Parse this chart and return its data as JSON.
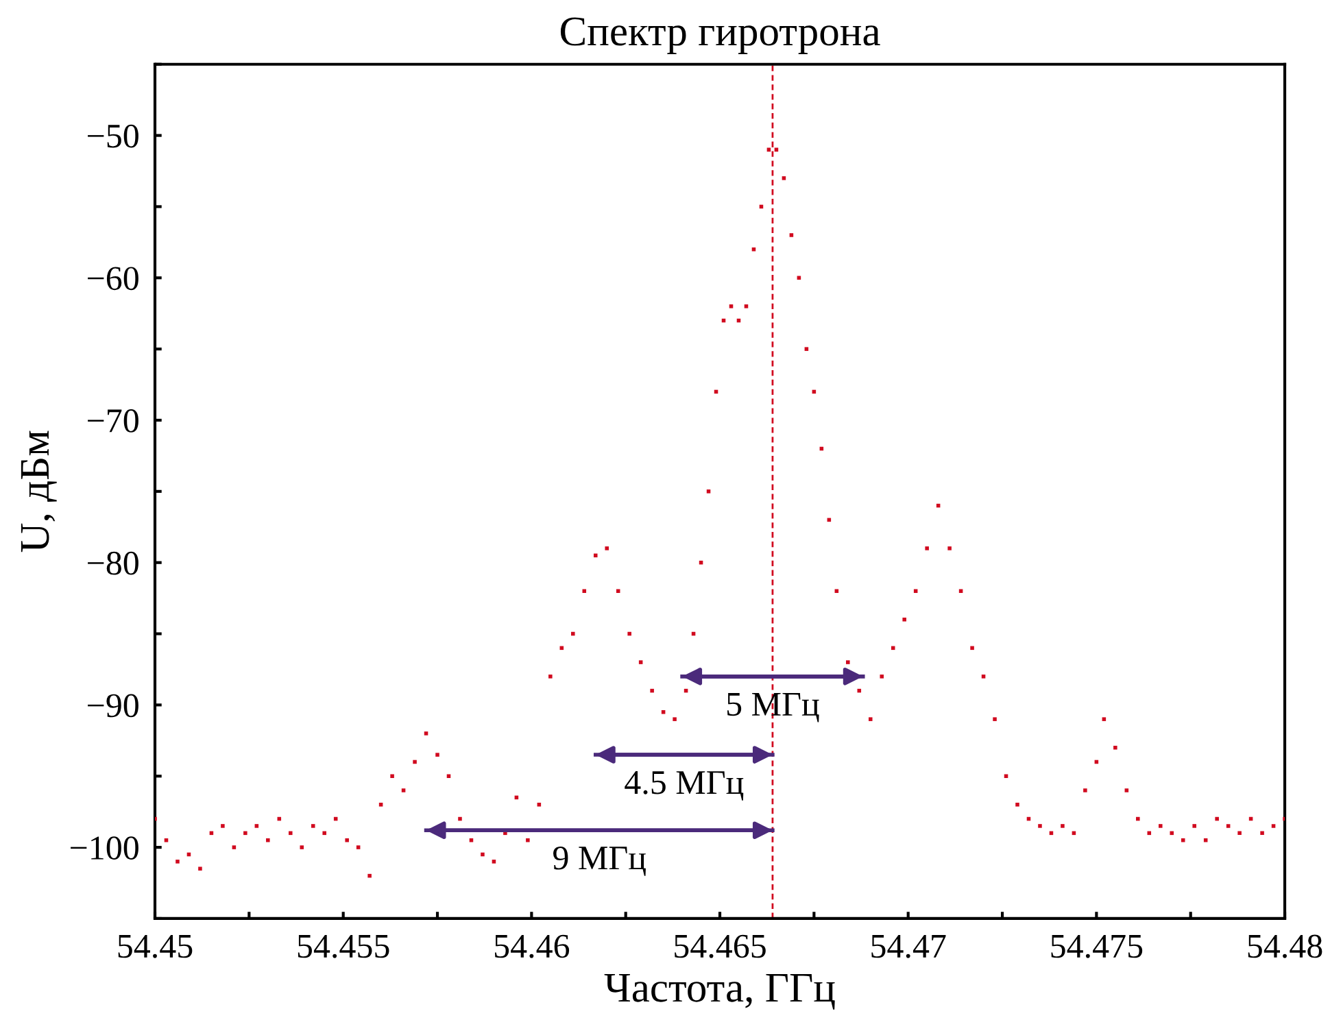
{
  "chart_data": {
    "type": "scatter",
    "title": "Спектр гиротрона",
    "xlabel": "Частота, ГГц",
    "ylabel": "U, дБм",
    "xlim": [
      54.45,
      54.48
    ],
    "ylim": [
      -105,
      -45
    ],
    "xticks": [
      54.45,
      {
        "value": 54.4525,
        "label": null
      },
      54.455,
      {
        "value": 54.4575,
        "label": null
      },
      54.46,
      {
        "value": 54.4625,
        "label": null
      },
      54.465,
      {
        "value": 54.4675,
        "label": null
      },
      54.47,
      {
        "value": 54.4725,
        "label": null
      },
      54.475,
      {
        "value": 54.4775,
        "label": null
      },
      54.48
    ],
    "yticks": [
      {
        "value": -105,
        "label": null
      },
      -100,
      {
        "value": -95,
        "label": null
      },
      -90,
      {
        "value": -85,
        "label": null
      },
      -80,
      {
        "value": -75,
        "label": null
      },
      -70,
      {
        "value": -65,
        "label": null
      },
      -60,
      {
        "value": -55,
        "label": null
      },
      -50,
      {
        "value": -45,
        "label": null
      }
    ],
    "grid": false,
    "legend": false,
    "series": [
      {
        "color": "#d10a1f",
        "x": [
          54.45,
          54.4503,
          54.4506,
          54.4509,
          54.4512,
          54.4515,
          54.4518,
          54.4521,
          54.4524,
          54.4527,
          54.453,
          54.4533,
          54.4536,
          54.4539,
          54.4542,
          54.4545,
          54.4548,
          54.4551,
          54.4554,
          54.4557,
          54.456,
          54.4563,
          54.4566,
          54.4569,
          54.4572,
          54.4575,
          54.4578,
          54.4581,
          54.4584,
          54.4587,
          54.459,
          54.4593,
          54.4596,
          54.4599,
          54.4602,
          54.4605,
          54.4608,
          54.4611,
          54.4614,
          54.4617,
          54.462,
          54.4623,
          54.4626,
          54.4629,
          54.4632,
          54.4635,
          54.4638,
          54.4641,
          54.4643,
          54.4645,
          54.4647,
          54.4649,
          54.4651,
          54.4653,
          54.4655,
          54.4657,
          54.4659,
          54.4661,
          54.4663,
          54.4665,
          54.4667,
          54.4669,
          54.4671,
          54.4673,
          54.4675,
          54.4677,
          54.4679,
          54.4681,
          54.4684,
          54.4687,
          54.469,
          54.4693,
          54.4696,
          54.4699,
          54.4702,
          54.4705,
          54.4708,
          54.4711,
          54.4714,
          54.4717,
          54.472,
          54.4723,
          54.4726,
          54.4729,
          54.4732,
          54.4735,
          54.4738,
          54.4741,
          54.4744,
          54.4747,
          54.475,
          54.4752,
          54.4755,
          54.4758,
          54.4761,
          54.4764,
          54.4767,
          54.477,
          54.4773,
          54.4776,
          54.4779,
          54.4782,
          54.4785,
          54.4788,
          54.4791,
          54.4794,
          54.4797,
          54.48
        ],
        "values": [
          -98,
          -99.5,
          -101,
          -100.5,
          -101.5,
          -99,
          -98.5,
          -100,
          -99,
          -98.5,
          -99.5,
          -98,
          -99,
          -100,
          -98.5,
          -99,
          -98,
          -99.5,
          -100,
          -102,
          -97,
          -95,
          -96,
          -94,
          -92,
          -93.5,
          -95,
          -98,
          -99.5,
          -100.5,
          -101,
          -99,
          -96.5,
          -99.5,
          -97,
          -88,
          -86,
          -85,
          -82,
          -79.5,
          -79,
          -82,
          -85,
          -87,
          -89,
          -90.5,
          -91,
          -89,
          -85,
          -80,
          -75,
          -68,
          -63,
          -62,
          -63,
          -62,
          -58,
          -55,
          -51,
          -51,
          -53,
          -57,
          -60,
          -65,
          -68,
          -72,
          -77,
          -82,
          -87,
          -89,
          -91,
          -88,
          -86,
          -84,
          -82,
          -79,
          -76,
          -79,
          -82,
          -86,
          -88,
          -91,
          -95,
          -97,
          -98,
          -98.5,
          -99,
          -98.5,
          -99,
          -96,
          -94,
          -91,
          -93,
          -96,
          -98,
          -99,
          -98.5,
          -99,
          -99.5,
          -98.5,
          -99.5,
          -98,
          -98.5,
          -99,
          -98,
          -99,
          -98.5,
          -98
        ]
      },
      {
        "type": "line",
        "color": "#4b2a7b",
        "x": [
          54.464,
          54.4688
        ],
        "values": [
          -88,
          -88
        ]
      },
      {
        "type": "line",
        "color": "#4b2a7b",
        "x": [
          54.4617,
          54.4664
        ],
        "values": [
          -93.5,
          -93.5
        ]
      },
      {
        "type": "line",
        "color": "#4b2a7b",
        "x": [
          54.4572,
          54.4664
        ],
        "values": [
          -98.8,
          -98.8
        ]
      }
    ],
    "ref_lines": [
      {
        "axis": "x",
        "value": 54.4664,
        "color": "#d10a1f",
        "line_style": "dashed"
      }
    ],
    "annotations": [
      "5 МГц",
      "4.5 МГц",
      "9 МГц"
    ]
  }
}
